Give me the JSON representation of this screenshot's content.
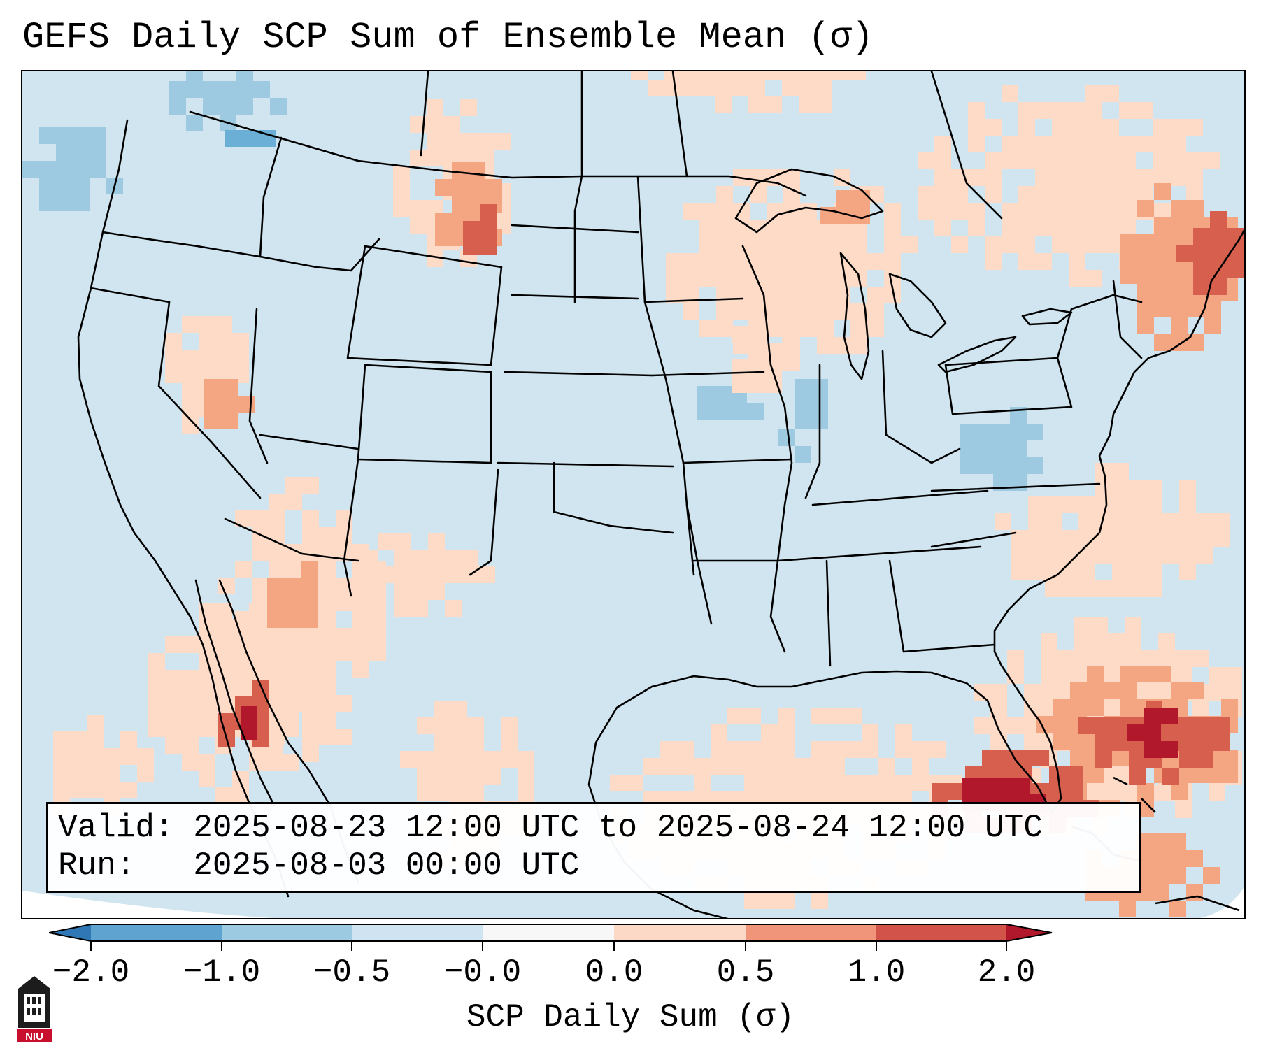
{
  "title": "GEFS Daily SCP Sum of Ensemble Mean (σ)",
  "valid_line": "Valid: 2025-08-23 12:00 UTC to 2025-08-24 12:00 UTC",
  "run_line": "Run:   2025-08-03 00:00 UTC",
  "colorbar": {
    "label": "SCP Daily Sum (σ)",
    "ticks": [
      "−2.0",
      "−1.0",
      "−0.5",
      "−0.0",
      "0.0",
      "0.5",
      "1.0",
      "2.0"
    ],
    "bin_colors": [
      "#2f78b5",
      "#5fa4d0",
      "#9ccae1",
      "#d0e3f0",
      "#f7f7f7",
      "#fcd9c6",
      "#f0957a",
      "#d1534a",
      "#b1182b"
    ]
  },
  "map_colors": {
    "base": "#d1e5f0",
    "light_blue": "#9ecae1",
    "mid_blue": "#6baed6",
    "light_red": "#fddbc7",
    "mid_red": "#f4a582",
    "strong_red": "#d6604d",
    "deep_red": "#b2182b",
    "line": "#000000"
  },
  "logo": {
    "text": "NIU",
    "colors": {
      "shield": "#1c1c1c",
      "band": "#c8102e"
    }
  }
}
